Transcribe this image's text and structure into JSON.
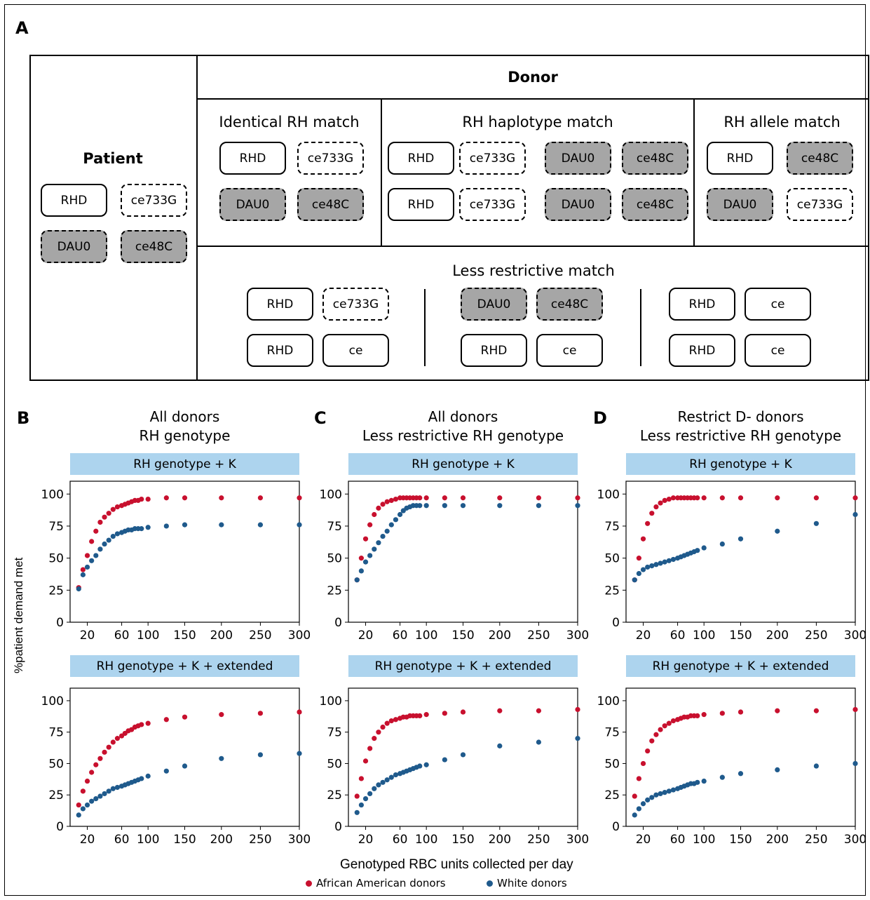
{
  "panel_a": {
    "letter": "A",
    "donor_header": "Donor",
    "patient": {
      "label": "Patient",
      "alleles": [
        [
          "RHD",
          "ce733G"
        ],
        [
          "DAU0",
          "ce48C"
        ]
      ]
    },
    "identical": {
      "label": "Identical RH match",
      "alleles": [
        [
          "RHD",
          "ce733G"
        ],
        [
          "DAU0",
          "ce48C"
        ]
      ]
    },
    "haplotype": {
      "label": "RH haplotype match",
      "alleles": [
        [
          "RHD",
          "ce733G",
          "DAU0",
          "ce48C"
        ],
        [
          "RHD",
          "ce733G",
          "DAU0",
          "ce48C"
        ]
      ]
    },
    "allele_match": {
      "label": "RH allele match",
      "alleles": [
        [
          "RHD",
          "ce48C"
        ],
        [
          "DAU0",
          "ce733G"
        ]
      ]
    },
    "less_restrictive": {
      "label": "Less restrictive match",
      "groups": [
        [
          [
            "RHD",
            "ce733G"
          ],
          [
            "RHD",
            "ce"
          ]
        ],
        [
          [
            "DAU0",
            "ce48C"
          ],
          [
            "RHD",
            "ce"
          ]
        ],
        [
          [
            "RHD",
            "ce"
          ],
          [
            "RHD",
            "ce"
          ]
        ]
      ]
    }
  },
  "panels": [
    {
      "letter": "B",
      "title_line1": "All donors",
      "title_line2": "RH genotype"
    },
    {
      "letter": "C",
      "title_line1": "All donors",
      "title_line2": "Less restrictive RH genotype"
    },
    {
      "letter": "D",
      "title_line1": "Restrict D- donors",
      "title_line2": "Less restrictive RH genotype"
    }
  ],
  "facets": [
    "RH genotype + K",
    "RH genotype + K + extended"
  ],
  "axis": {
    "ylabel": "%patient demand met",
    "xlabel": "Genotyped RBC units collected per day",
    "yticks": [
      0,
      25,
      50,
      75,
      100
    ],
    "xticks": [
      20,
      60,
      100,
      150,
      200,
      250,
      300
    ]
  },
  "legend": [
    {
      "label": "African American donors",
      "color": "#c8102e"
    },
    {
      "label": "White donors",
      "color": "#1f5a8c"
    }
  ],
  "chart_data": [
    {
      "type": "scatter",
      "panel": "B",
      "facet": "RH genotype + K",
      "x": [
        10,
        15,
        20,
        25,
        30,
        35,
        40,
        45,
        50,
        55,
        60,
        65,
        70,
        75,
        80,
        85,
        90,
        100,
        125,
        150,
        200,
        250,
        300
      ],
      "ylim": [
        0,
        110
      ],
      "series": [
        {
          "name": "African American donors",
          "values": [
            27,
            41,
            52,
            63,
            71,
            78,
            82,
            85,
            88,
            90,
            91,
            92,
            93,
            94,
            95,
            95,
            96,
            96,
            97,
            97,
            97,
            97,
            97
          ]
        },
        {
          "name": "White donors",
          "values": [
            26,
            37,
            43,
            48,
            52,
            57,
            61,
            64,
            67,
            69,
            70,
            71,
            72,
            72,
            73,
            73,
            73,
            74,
            75,
            76,
            76,
            76,
            76
          ]
        }
      ]
    },
    {
      "type": "scatter",
      "panel": "C",
      "facet": "RH genotype + K",
      "x": [
        10,
        15,
        20,
        25,
        30,
        35,
        40,
        45,
        50,
        55,
        60,
        65,
        70,
        75,
        80,
        85,
        90,
        100,
        125,
        150,
        200,
        250,
        300
      ],
      "ylim": [
        0,
        110
      ],
      "series": [
        {
          "name": "African American donors",
          "values": [
            33,
            50,
            65,
            76,
            84,
            89,
            92,
            94,
            95,
            96,
            97,
            97,
            97,
            97,
            97,
            97,
            97,
            97,
            97,
            97,
            97,
            97,
            97
          ]
        },
        {
          "name": "White donors",
          "values": [
            33,
            40,
            47,
            52,
            57,
            62,
            67,
            71,
            76,
            80,
            84,
            87,
            89,
            90,
            91,
            91,
            91,
            91,
            91,
            91,
            91,
            91,
            91
          ]
        }
      ]
    },
    {
      "type": "scatter",
      "panel": "D",
      "facet": "RH genotype + K",
      "x": [
        10,
        15,
        20,
        25,
        30,
        35,
        40,
        45,
        50,
        55,
        60,
        65,
        70,
        75,
        80,
        85,
        90,
        100,
        125,
        150,
        200,
        250,
        300
      ],
      "ylim": [
        0,
        110
      ],
      "series": [
        {
          "name": "African American donors",
          "values": [
            33,
            50,
            65,
            77,
            85,
            90,
            93,
            95,
            96,
            97,
            97,
            97,
            97,
            97,
            97,
            97,
            97,
            97,
            97,
            97,
            97,
            97,
            97
          ]
        },
        {
          "name": "White donors",
          "values": [
            33,
            38,
            41,
            43,
            44,
            45,
            46,
            47,
            48,
            49,
            50,
            51,
            52,
            53,
            54,
            55,
            56,
            58,
            61,
            65,
            71,
            77,
            84
          ]
        }
      ]
    },
    {
      "type": "scatter",
      "panel": "B",
      "facet": "RH genotype + K + extended",
      "x": [
        10,
        15,
        20,
        25,
        30,
        35,
        40,
        45,
        50,
        55,
        60,
        65,
        70,
        75,
        80,
        85,
        90,
        100,
        125,
        150,
        200,
        250,
        300
      ],
      "ylim": [
        0,
        110
      ],
      "series": [
        {
          "name": "African American donors",
          "values": [
            17,
            28,
            36,
            43,
            49,
            54,
            59,
            63,
            67,
            70,
            72,
            74,
            76,
            77,
            79,
            80,
            81,
            82,
            85,
            87,
            89,
            90,
            91
          ]
        },
        {
          "name": "White donors",
          "values": [
            9,
            14,
            17,
            20,
            22,
            24,
            26,
            28,
            30,
            31,
            32,
            33,
            34,
            35,
            36,
            37,
            38,
            40,
            44,
            48,
            54,
            57,
            58
          ]
        }
      ]
    },
    {
      "type": "scatter",
      "panel": "C",
      "facet": "RH genotype + K + extended",
      "x": [
        10,
        15,
        20,
        25,
        30,
        35,
        40,
        45,
        50,
        55,
        60,
        65,
        70,
        75,
        80,
        85,
        90,
        100,
        125,
        150,
        200,
        250,
        300
      ],
      "ylim": [
        0,
        110
      ],
      "series": [
        {
          "name": "African American donors",
          "values": [
            24,
            38,
            52,
            62,
            70,
            75,
            79,
            82,
            84,
            85,
            86,
            87,
            87,
            88,
            88,
            88,
            88,
            89,
            90,
            91,
            92,
            92,
            93
          ]
        },
        {
          "name": "White donors",
          "values": [
            11,
            17,
            22,
            26,
            30,
            33,
            35,
            37,
            39,
            41,
            42,
            43,
            44,
            45,
            46,
            47,
            48,
            49,
            53,
            57,
            64,
            67,
            70
          ]
        }
      ]
    },
    {
      "type": "scatter",
      "panel": "D",
      "facet": "RH genotype + K + extended",
      "x": [
        10,
        15,
        20,
        25,
        30,
        35,
        40,
        45,
        50,
        55,
        60,
        65,
        70,
        75,
        80,
        85,
        90,
        100,
        125,
        150,
        200,
        250,
        300
      ],
      "ylim": [
        0,
        110
      ],
      "series": [
        {
          "name": "African American donors",
          "values": [
            24,
            38,
            50,
            60,
            68,
            73,
            77,
            80,
            82,
            84,
            85,
            86,
            87,
            87,
            88,
            88,
            88,
            89,
            90,
            91,
            92,
            92,
            93
          ]
        },
        {
          "name": "White donors",
          "values": [
            9,
            14,
            18,
            21,
            23,
            25,
            26,
            27,
            28,
            29,
            30,
            31,
            32,
            33,
            34,
            34,
            35,
            36,
            39,
            42,
            45,
            48,
            50
          ]
        }
      ]
    }
  ]
}
